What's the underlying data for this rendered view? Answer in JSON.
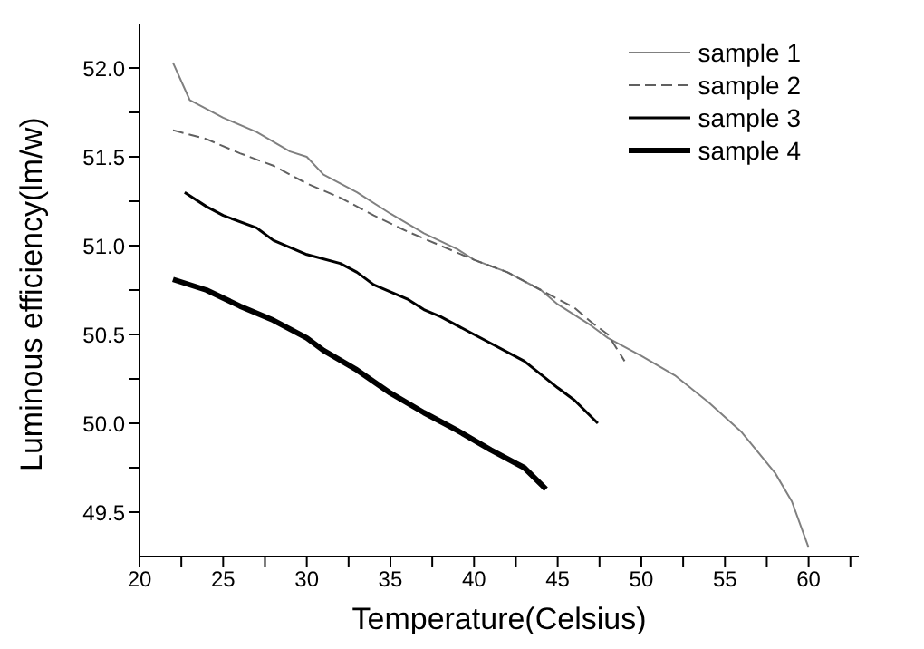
{
  "chart_data": {
    "type": "line",
    "xlabel": "Temperature(Celsius)",
    "ylabel": "Luminous efficiency(lm/w)",
    "xlim": [
      20,
      63
    ],
    "ylim": [
      49.25,
      52.25
    ],
    "xticks": [
      20,
      {
        "value": 22.5,
        "label": null
      },
      25,
      {
        "value": 27.5,
        "label": null
      },
      30,
      {
        "value": 32.5,
        "label": null
      },
      35,
      {
        "value": 37.5,
        "label": null
      },
      40,
      {
        "value": 42.5,
        "label": null
      },
      45,
      {
        "value": 47.5,
        "label": null
      },
      50,
      {
        "value": 52.5,
        "label": null
      },
      55,
      {
        "value": 57.5,
        "label": null
      },
      60,
      {
        "value": 62.5,
        "label": null
      }
    ],
    "yticks": [
      {
        "value": 49.5,
        "label": "49.5"
      },
      {
        "value": 49.75,
        "label": null
      },
      {
        "value": 50,
        "label": "50.0"
      },
      {
        "value": 50.25,
        "label": null
      },
      {
        "value": 50.5,
        "label": "50.5"
      },
      {
        "value": 50.75,
        "label": null
      },
      {
        "value": 51,
        "label": "51.0"
      },
      {
        "value": 51.25,
        "label": null
      },
      {
        "value": 51.5,
        "label": "51.5"
      },
      {
        "value": 51.75,
        "label": null
      },
      {
        "value": 52,
        "label": "52.0"
      }
    ],
    "grid": false,
    "legend": "top right",
    "marker": "none",
    "series": [
      {
        "name": "sample 1",
        "color": "#808080",
        "line_style": "solid",
        "x": [
          22,
          23,
          25,
          27,
          29,
          30,
          31,
          33,
          35,
          37,
          39,
          40,
          42,
          44,
          45,
          47,
          48,
          50,
          52,
          54,
          56,
          58,
          59,
          60
        ],
        "values": [
          52.03,
          51.82,
          51.72,
          51.64,
          51.53,
          51.5,
          51.4,
          51.3,
          51.18,
          51.07,
          50.98,
          50.92,
          50.85,
          50.75,
          50.67,
          50.55,
          50.48,
          50.38,
          50.27,
          50.12,
          49.95,
          49.72,
          49.56,
          49.3
        ]
      },
      {
        "name": "sample 2",
        "color": "#606060",
        "line_style": "dashed",
        "x": [
          22,
          24,
          26,
          28,
          30,
          32,
          34,
          36,
          38,
          40,
          42,
          44,
          46,
          47,
          48,
          49
        ],
        "values": [
          51.65,
          51.6,
          51.52,
          51.45,
          51.35,
          51.27,
          51.17,
          51.08,
          51.0,
          50.92,
          50.85,
          50.75,
          50.65,
          50.57,
          50.5,
          50.35
        ]
      },
      {
        "name": "sample 3",
        "color": "#000000",
        "line_style": "solid",
        "x": [
          22.7,
          24,
          25,
          27,
          28,
          30,
          32,
          33,
          34,
          36,
          37,
          38,
          40,
          41,
          43,
          45,
          46,
          47.4
        ],
        "values": [
          51.3,
          51.22,
          51.17,
          51.1,
          51.03,
          50.95,
          50.9,
          50.85,
          50.78,
          50.7,
          50.64,
          50.6,
          50.5,
          50.45,
          50.35,
          50.2,
          50.13,
          50.0
        ]
      },
      {
        "name": "sample 4",
        "color": "#000000",
        "line_style": "solid",
        "x": [
          22,
          24,
          26,
          28,
          30,
          31,
          33,
          35,
          37,
          39,
          41,
          43,
          44.3
        ],
        "values": [
          50.81,
          50.75,
          50.66,
          50.58,
          50.48,
          50.41,
          50.3,
          50.17,
          50.06,
          49.96,
          49.85,
          49.75,
          49.63
        ]
      }
    ]
  }
}
